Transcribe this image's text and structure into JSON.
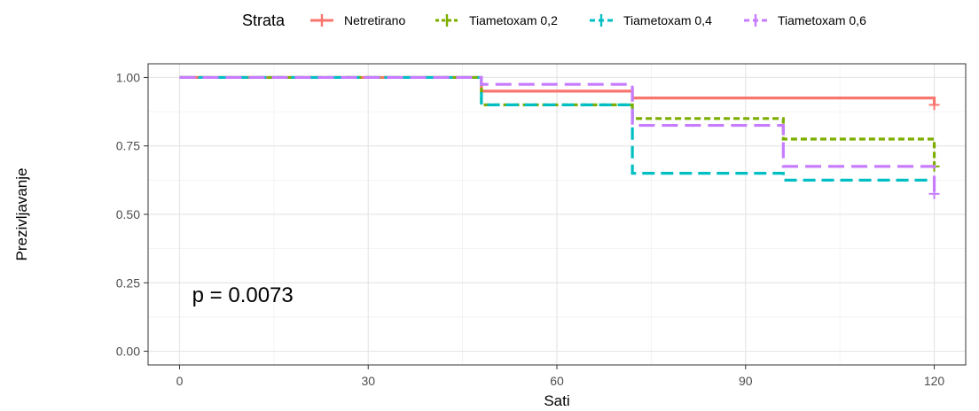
{
  "chart_data": {
    "type": "line",
    "step": true,
    "xlabel": "Sati",
    "ylabel": "Prezivljavanje",
    "xlim": [
      -5,
      125
    ],
    "ylim": [
      -0.05,
      1.05
    ],
    "xticks": [
      0,
      30,
      60,
      90,
      120
    ],
    "xtick_labels": [
      "0",
      "30",
      "60",
      "90",
      "120"
    ],
    "yticks": [
      0,
      0.25,
      0.5,
      0.75,
      1.0
    ],
    "ytick_labels": [
      "0.00",
      "0.25",
      "0.50",
      "0.75",
      "1.00"
    ],
    "grid": true,
    "legend": {
      "title": "Strata",
      "position": "top",
      "entries": [
        "Netretirano",
        "Tiametoxam 0,2",
        "Tiametoxam 0,4",
        "Tiametoxam 0,6"
      ]
    },
    "annotation": "p = 0.0073",
    "annotation_position": {
      "x": 2,
      "y": 0.18
    },
    "series": [
      {
        "name": "Netretirano",
        "color": "#F8766D",
        "dash": "solid",
        "x": [
          0,
          48,
          72,
          120
        ],
        "y": [
          1.0,
          0.95,
          0.925,
          0.9
        ],
        "censor": [
          {
            "x": 120,
            "y": 0.9
          }
        ]
      },
      {
        "name": "Tiametoxam 0,2",
        "color": "#7CAE00",
        "dash": "dotted",
        "x": [
          0,
          48,
          72,
          96,
          120
        ],
        "y": [
          1.0,
          0.9,
          0.85,
          0.775,
          0.675
        ],
        "censor": [
          {
            "x": 120,
            "y": 0.675
          }
        ]
      },
      {
        "name": "Tiametoxam 0,4",
        "color": "#00BFC4",
        "dash": "dashed",
        "x": [
          0,
          48,
          72,
          96,
          120
        ],
        "y": [
          1.0,
          0.9,
          0.65,
          0.625,
          0.625
        ],
        "censor": []
      },
      {
        "name": "Tiametoxam 0,6",
        "color": "#C77CFF",
        "dash": "longdash",
        "x": [
          0,
          48,
          72,
          96,
          120
        ],
        "y": [
          1.0,
          0.975,
          0.825,
          0.675,
          0.575
        ],
        "censor": [
          {
            "x": 120,
            "y": 0.575
          }
        ]
      }
    ]
  }
}
